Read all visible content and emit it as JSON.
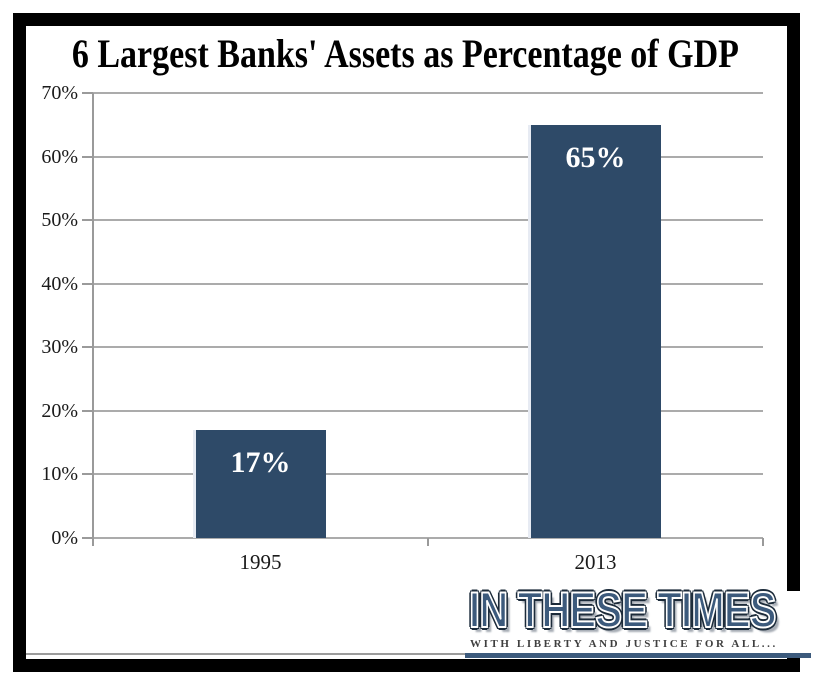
{
  "chart_data": {
    "type": "bar",
    "title": "6 Largest Banks' Assets as Percentage of GDP",
    "categories": [
      "1995",
      "2013"
    ],
    "values": [
      17,
      65
    ],
    "value_labels": [
      "17%",
      "65%"
    ],
    "xlabel": "",
    "ylabel": "",
    "ylim": [
      0,
      70
    ],
    "ytick_step": 10,
    "ytick_labels": [
      "0%",
      "10%",
      "20%",
      "30%",
      "40%",
      "50%",
      "60%",
      "70%"
    ],
    "grid": true,
    "legend": "none",
    "bar_color": "#2E4A68",
    "gridline_color": "#ABABAB"
  },
  "branding": {
    "logo_text": "IN THESE TIMES",
    "tagline": "WITH LIBERTY AND JUSTICE FOR ALL...",
    "logo_color": "#3C5A7C"
  }
}
